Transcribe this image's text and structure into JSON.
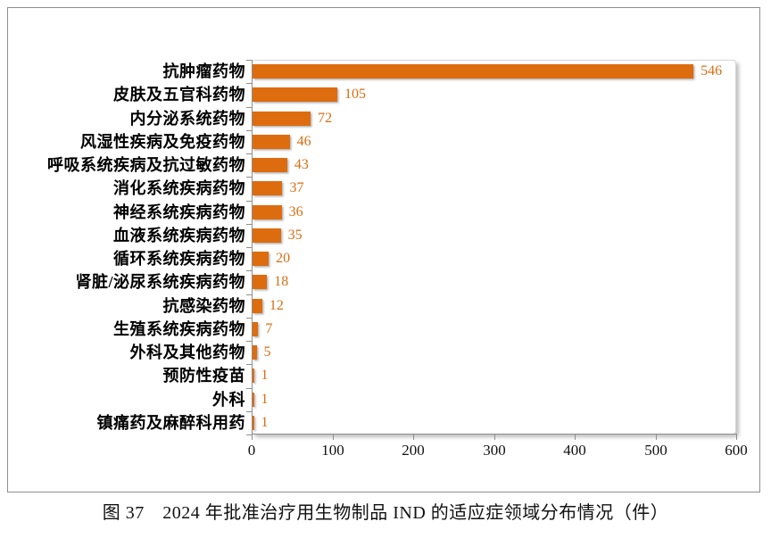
{
  "caption": "图 37　2024 年批准治疗用生物制品 IND 的适应症领域分布情况（件）",
  "colors": {
    "bar": "#dd6c0f",
    "value_label": "#d96d12",
    "axis": "#8f8f8f",
    "frame_border": "#8f8f8f"
  },
  "chart_data": {
    "type": "bar",
    "orientation": "horizontal",
    "title": "图 37　2024 年批准治疗用生物制品 IND 的适应症领域分布情况（件）",
    "xlabel": "",
    "ylabel": "",
    "xlim": [
      0,
      600
    ],
    "x_ticks": [
      0,
      100,
      200,
      300,
      400,
      500,
      600
    ],
    "grid": "off",
    "legend_position": "none",
    "categories": [
      "抗肿瘤药物",
      "皮肤及五官科药物",
      "内分泌系统药物",
      "风湿性疾病及免疫药物",
      "呼吸系统疾病及抗过敏药物",
      "消化系统疾病药物",
      "神经系统疾病药物",
      "血液系统疾病药物",
      "循环系统疾病药物",
      "肾脏/泌尿系统疾病药物",
      "抗感染药物",
      "生殖系统疾病药物",
      "外科及其他药物",
      "预防性疫苗",
      "外科",
      "镇痛药及麻醉科用药"
    ],
    "values": [
      546,
      105,
      72,
      46,
      43,
      37,
      36,
      35,
      20,
      18,
      12,
      7,
      5,
      1,
      1,
      1
    ]
  }
}
